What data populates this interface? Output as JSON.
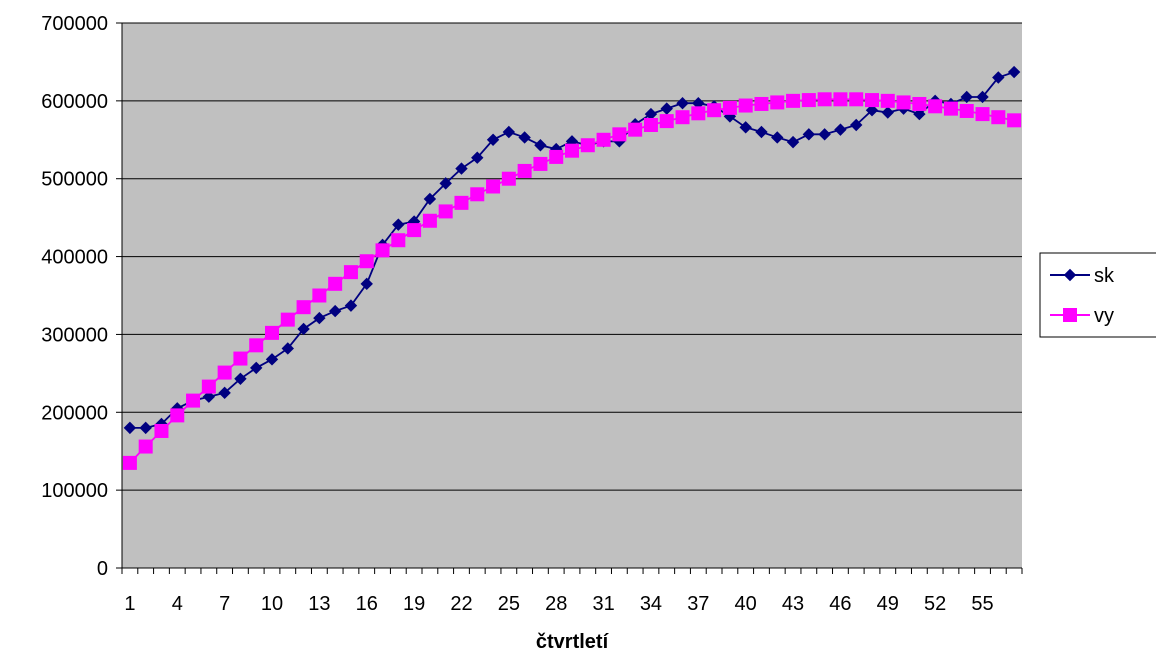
{
  "chart_data": {
    "type": "line",
    "xlabel": "čtvrtletí",
    "ylabel": "",
    "ylim": [
      0,
      700000
    ],
    "yticks": [
      0,
      100000,
      200000,
      300000,
      400000,
      500000,
      600000,
      700000
    ],
    "ytick_labels": [
      "0",
      "100000",
      "200000",
      "300000",
      "400000",
      "500000",
      "600000",
      "700000"
    ],
    "x": [
      1,
      2,
      3,
      4,
      5,
      6,
      7,
      8,
      9,
      10,
      11,
      12,
      13,
      14,
      15,
      16,
      17,
      18,
      19,
      20,
      21,
      22,
      23,
      24,
      25,
      26,
      27,
      28,
      29,
      30,
      31,
      32,
      33,
      34,
      35,
      36,
      37,
      38,
      39,
      40,
      41,
      42,
      43,
      44,
      45,
      46,
      47,
      48,
      49,
      50,
      51,
      52,
      53,
      54,
      55,
      56,
      57
    ],
    "xtick_labels": [
      {
        "x": 1,
        "label": "1"
      },
      {
        "x": 4,
        "label": "4"
      },
      {
        "x": 7,
        "label": "7"
      },
      {
        "x": 10,
        "label": "10"
      },
      {
        "x": 13,
        "label": "13"
      },
      {
        "x": 16,
        "label": "16"
      },
      {
        "x": 19,
        "label": "19"
      },
      {
        "x": 22,
        "label": "22"
      },
      {
        "x": 25,
        "label": "25"
      },
      {
        "x": 28,
        "label": "28"
      },
      {
        "x": 31,
        "label": "31"
      },
      {
        "x": 34,
        "label": "34"
      },
      {
        "x": 37,
        "label": "37"
      },
      {
        "x": 40,
        "label": "40"
      },
      {
        "x": 43,
        "label": "43"
      },
      {
        "x": 46,
        "label": "46"
      },
      {
        "x": 49,
        "label": "49"
      },
      {
        "x": 52,
        "label": "52"
      },
      {
        "x": 55,
        "label": "55"
      }
    ],
    "grid": true,
    "plot_background": "#c0c0c0",
    "legend_position": "right",
    "series": [
      {
        "name": "sk",
        "color": "#000080",
        "marker": "diamond",
        "values": [
          180000,
          180000,
          185000,
          205000,
          215000,
          220000,
          225000,
          243000,
          257000,
          268000,
          282000,
          307000,
          321000,
          330000,
          337000,
          365000,
          415000,
          441000,
          445000,
          474000,
          494000,
          513000,
          527000,
          550000,
          560000,
          553000,
          543000,
          538000,
          548000,
          543000,
          548000,
          548000,
          570000,
          583000,
          590000,
          597000,
          597000,
          593000,
          580000,
          566000,
          560000,
          553000,
          547000,
          557000,
          557000,
          563000,
          569000,
          588000,
          585000,
          590000,
          583000,
          600000,
          596000,
          605000,
          605000,
          630000,
          637000
        ]
      },
      {
        "name": "vy",
        "color": "#ff00ff",
        "marker": "square",
        "values": [
          135000,
          156000,
          176000,
          196000,
          215000,
          233000,
          251000,
          269000,
          286000,
          302000,
          319000,
          335000,
          350000,
          365000,
          380000,
          394000,
          408000,
          421000,
          434000,
          446000,
          458000,
          469000,
          480000,
          490000,
          500000,
          510000,
          519000,
          528000,
          536000,
          543000,
          550000,
          557000,
          563000,
          569000,
          574000,
          579000,
          584000,
          588000,
          591000,
          594000,
          596000,
          598000,
          600000,
          601000,
          602000,
          602000,
          602000,
          601000,
          600000,
          598000,
          596000,
          593000,
          590000,
          587000,
          583000,
          579000,
          575000
        ]
      }
    ]
  }
}
